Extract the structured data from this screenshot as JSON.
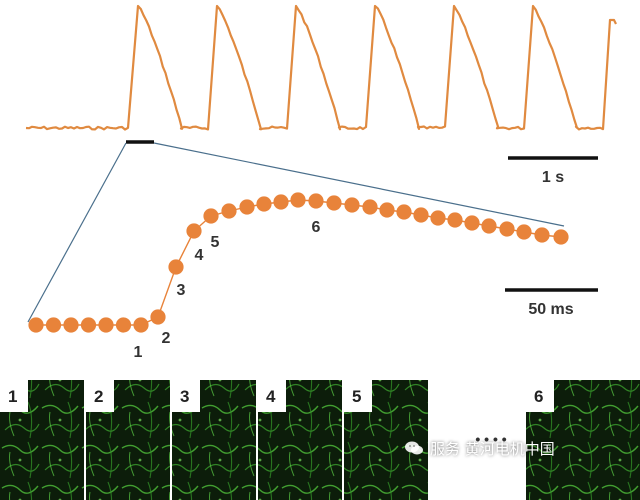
{
  "colors": {
    "trace": "#e08a40",
    "dot": "#e8833a",
    "link": "#4a6f8c",
    "scalebar": "#111111"
  },
  "scalebars": {
    "time_long": "1 s",
    "time_short": "50 ms"
  },
  "trace": {
    "beats": 7
  },
  "phase_labels": [
    "1",
    "2",
    "3",
    "4",
    "5",
    "6"
  ],
  "panels": [
    {
      "label": "1"
    },
    {
      "label": "2"
    },
    {
      "label": "3"
    },
    {
      "label": "4"
    },
    {
      "label": "5"
    },
    {
      "label": ""
    },
    {
      "label": "6"
    }
  ],
  "ellipsis": "• • • •",
  "watermark": {
    "icon": "wechat-icon",
    "text": "服务 黄河电机中国"
  }
}
